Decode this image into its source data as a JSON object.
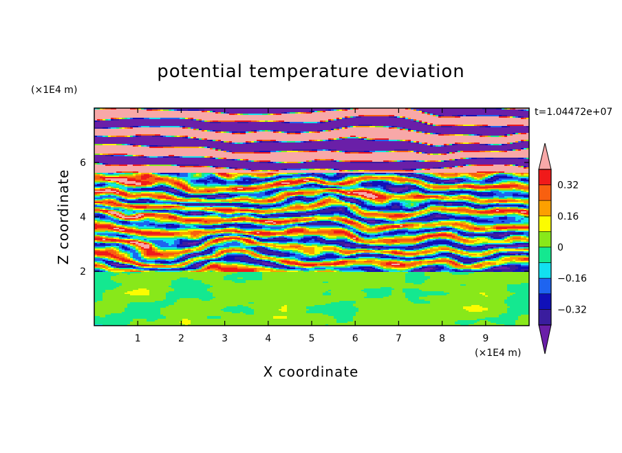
{
  "chart_data": {
    "type": "heatmap",
    "title": "potential temperature deviation",
    "xlabel": "X coordinate",
    "ylabel": "Z coordinate",
    "x_unit": "(×1E4 m)",
    "y_unit": "(×1E4 m)",
    "time_label": "t=1.04472e+07",
    "xlim": [
      0,
      10
    ],
    "ylim": [
      0,
      8
    ],
    "x_ticks": [
      1,
      2,
      3,
      4,
      5,
      6,
      7,
      8,
      9
    ],
    "y_ticks": [
      2,
      4,
      6
    ],
    "x_tick_labels": [
      "1",
      "2",
      "3",
      "4",
      "5",
      "6",
      "7",
      "8",
      "9"
    ],
    "y_tick_labels": [
      "2",
      "4",
      "6"
    ],
    "colorbar": {
      "levels": [
        -0.4,
        -0.32,
        -0.24,
        -0.16,
        -0.08,
        0,
        0.08,
        0.16,
        0.24,
        0.32,
        0.4
      ],
      "colors": [
        "#6a1fa8",
        "#3a1d9e",
        "#1010b8",
        "#1e64f0",
        "#12e0f0",
        "#14e890",
        "#88e81a",
        "#fcfc00",
        "#fca000",
        "#f86010",
        "#f01a1a",
        "#f8a8a8"
      ],
      "tick_values": [
        0.32,
        0.16,
        0,
        -0.16,
        -0.32
      ],
      "tick_labels": [
        "0.32",
        "0.16",
        "0",
        "−0.16",
        "−0.32"
      ],
      "extend": "both"
    },
    "field_description": "Stratified layered field: lower region (z < 2) near zero (green), middle (2–5.5) turbulent mixing of all levels, upper (> 5.5) alternating strong positive (pink) and negative (purple) horizontal bands"
  }
}
